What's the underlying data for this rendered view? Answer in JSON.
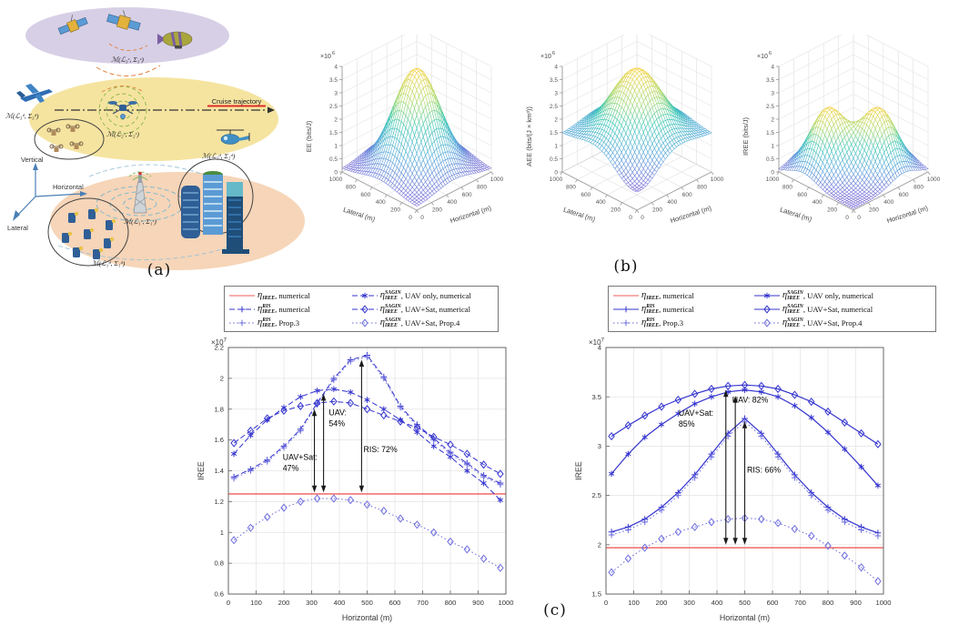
{
  "panel_labels": {
    "a": "(a)",
    "b": "(b)",
    "c": "(c)"
  },
  "colors": {
    "blue": "#3434cf",
    "lightblue": "#6f6fdf",
    "red": "#f05a5a",
    "arrow": "#1a1a1a",
    "grid": "#e3e3e3",
    "axis": "#666666"
  },
  "diagram": {
    "space_cluster_label": "ℳ(ℒ₃ᶜ, Σ₃ᶜ)",
    "uav_cluster_label": "ℳ(ℒ₂ᶜ, Σ₂ᶜ)",
    "bs_cluster_label": "ℳ(ℒ₁ᶜ, Σ₁ᶜ)",
    "drone_swarm_label": "ℳ(ℒ₃ᵈ, Σ₃ᵈ)",
    "buildings_label": "ℳ(ℒ₂ᵈ, Σ₂ᵈ)",
    "iot_label": "ℳ(ℒ₁ᵈ, Σ₁ᵈ)",
    "cruise_label": "Cruise trajectory",
    "axis_vertical": "Vertical",
    "axis_horizontal": "Horizontal",
    "axis_lateral": "Lateral"
  },
  "legends": [
    {
      "mount": "legend-left",
      "items": [
        {
          "sup": "",
          "sub": "IREE",
          "tail": ", numerical",
          "color": "red",
          "line": "solid",
          "marker": "none"
        },
        {
          "sup": "SAGIN",
          "sub": "IREE",
          "tail": ", UAV only, numerical",
          "color": "blue",
          "line": "dash",
          "marker": "star"
        },
        {
          "sup": "RIS",
          "sub": "IREE",
          "tail": ", numerical",
          "color": "blue",
          "line": "dash",
          "marker": "plus"
        },
        {
          "sup": "SAGIN",
          "sub": "IREE",
          "tail": ", UAV+Sat, numerical",
          "color": "blue",
          "line": "dash",
          "marker": "diamond"
        },
        {
          "sup": "RIS",
          "sub": "IREE",
          "tail": ", Prop.3",
          "color": "lightblue",
          "line": "dot",
          "marker": "plus"
        },
        {
          "sup": "SAGIN",
          "sub": "IREE",
          "tail": ", UAV+Sat, Prop.4",
          "color": "lightblue",
          "line": "dot",
          "marker": "diamond"
        }
      ]
    },
    {
      "mount": "legend-right",
      "items": [
        {
          "sup": "",
          "sub": "IREE",
          "tail": ", numerical",
          "color": "red",
          "line": "solid",
          "marker": "none"
        },
        {
          "sup": "SAGIN",
          "sub": "IREE",
          "tail": ", UAV only, numerical",
          "color": "blue",
          "line": "solid",
          "marker": "star"
        },
        {
          "sup": "RIS",
          "sub": "IREE",
          "tail": ", numerical",
          "color": "blue",
          "line": "solid",
          "marker": "plus"
        },
        {
          "sup": "SAGIN",
          "sub": "IREE",
          "tail": ", UAV+Sat, numerical",
          "color": "blue",
          "line": "solid",
          "marker": "diamond"
        },
        {
          "sup": "RIS",
          "sub": "IREE",
          "tail": ", Prop.3",
          "color": "lightblue",
          "line": "dot",
          "marker": "plus"
        },
        {
          "sup": "SAGIN",
          "sub": "IREE",
          "tail": ", UAV+Sat, Prop.4",
          "color": "lightblue",
          "line": "dot",
          "marker": "diamond"
        }
      ]
    }
  ],
  "chart_data": [
    {
      "id": "ee_surface",
      "type": "surface",
      "mount": "surf-ee",
      "zlabel": "EE (bits/J)",
      "exp_base": "×10",
      "exp_pow": "6",
      "xlabel": "Horizontal (m)",
      "ylabel": "Lateral (m)",
      "xlim": [
        0,
        1000
      ],
      "ylim": [
        0,
        1000
      ],
      "zlim": [
        0,
        4
      ],
      "xticks": [
        0,
        200,
        400,
        600,
        800,
        1000
      ],
      "yticks": [
        0,
        200,
        400,
        600,
        800,
        1000
      ],
      "zticks": [
        0,
        0.5,
        1,
        1.5,
        2,
        2.5,
        3,
        3.5,
        4
      ],
      "base": 0.12,
      "peaks": [
        {
          "x": 500,
          "y": 500,
          "a": 3.78,
          "s": 225
        }
      ],
      "dips": []
    },
    {
      "id": "aee_surface",
      "type": "surface",
      "mount": "surf-aee",
      "zlabel": "AEE (bits/(J × km³))",
      "exp_base": "×10",
      "exp_pow": "6",
      "xlabel": "Horizontal (m)",
      "ylabel": "Lateral (m)",
      "xlim": [
        0,
        1000
      ],
      "ylim": [
        0,
        1000
      ],
      "zlim": [
        0,
        4
      ],
      "xticks": [
        0,
        200,
        400,
        600,
        800,
        1000
      ],
      "yticks": [
        0,
        200,
        400,
        600,
        800,
        1000
      ],
      "zticks": [
        0,
        0.5,
        1,
        1.5,
        2,
        2.5,
        3,
        3.5,
        4
      ],
      "base": 1.45,
      "peaks": [
        {
          "x": 500,
          "y": 500,
          "a": 2.45,
          "s": 240
        }
      ],
      "dips": [
        {
          "x": 60,
          "y": 60,
          "a": 0.85,
          "s": 230
        }
      ]
    },
    {
      "id": "iree_surface",
      "type": "surface",
      "mount": "surf-iree",
      "zlabel": "IREE (bits/J)",
      "exp_base": "×10",
      "exp_pow": "6",
      "xlabel": "Horizontal (m)",
      "ylabel": "Lateral (m)",
      "xlim": [
        0,
        1000
      ],
      "ylim": [
        0,
        1000
      ],
      "zlim": [
        0,
        4
      ],
      "xticks": [
        0,
        200,
        400,
        600,
        800,
        1000
      ],
      "yticks": [
        0,
        200,
        400,
        600,
        800,
        1000
      ],
      "zticks": [
        0,
        0.5,
        1,
        1.5,
        2,
        2.5,
        3,
        3.5,
        4
      ],
      "base": 0.05,
      "peaks": [
        {
          "x": 330,
          "y": 670,
          "a": 2.32,
          "s": 175
        },
        {
          "x": 670,
          "y": 330,
          "a": 2.32,
          "s": 175
        }
      ],
      "dips": []
    },
    {
      "id": "iree_vs_horizontal_left",
      "type": "line",
      "mount": "chart-left",
      "xlabel": "Horizontal (m)",
      "ylabel": "IREE",
      "exp_base": "×10",
      "exp_pow": "7",
      "xlim": [
        0,
        1000
      ],
      "ylim": [
        0.6,
        2.2
      ],
      "xtick": 100,
      "ytick": 0.2,
      "ref_value": 1.25,
      "x": [
        20,
        80,
        140,
        200,
        260,
        320,
        380,
        440,
        500,
        560,
        620,
        680,
        740,
        800,
        860,
        920,
        980
      ],
      "series": [
        {
          "name": "eta_IREE_RIS numerical",
          "color": "blue",
          "line": "dash",
          "marker": "plus",
          "values": [
            1.36,
            1.41,
            1.47,
            1.56,
            1.67,
            1.84,
            2.0,
            2.12,
            2.15,
            2.01,
            1.82,
            1.7,
            1.61,
            1.52,
            1.45,
            1.37,
            1.32
          ]
        },
        {
          "name": "eta_IREE_RIS Prop.3",
          "color": "lightblue",
          "line": "dot",
          "marker": "plus",
          "values": [
            1.35,
            1.4,
            1.46,
            1.55,
            1.66,
            1.83,
            1.99,
            2.11,
            2.14,
            2.0,
            1.81,
            1.69,
            1.6,
            1.51,
            1.44,
            1.36,
            1.31
          ]
        },
        {
          "name": "eta_IREE_SAGIN UAV only numerical",
          "color": "blue",
          "line": "dash",
          "marker": "star",
          "values": [
            1.51,
            1.63,
            1.73,
            1.81,
            1.88,
            1.92,
            1.93,
            1.91,
            1.86,
            1.8,
            1.73,
            1.65,
            1.56,
            1.49,
            1.4,
            1.32,
            1.21
          ]
        },
        {
          "name": "eta_IREE_SAGIN UAV+Sat numerical",
          "color": "blue",
          "line": "dash",
          "marker": "diamond",
          "values": [
            1.58,
            1.66,
            1.74,
            1.79,
            1.82,
            1.84,
            1.85,
            1.84,
            1.8,
            1.76,
            1.72,
            1.68,
            1.62,
            1.57,
            1.51,
            1.44,
            1.38
          ]
        },
        {
          "name": "eta_IREE_SAGIN UAV+Sat Prop.4",
          "color": "lightblue",
          "line": "dot",
          "marker": "diamond",
          "values": [
            0.95,
            1.03,
            1.1,
            1.16,
            1.2,
            1.22,
            1.22,
            1.21,
            1.18,
            1.14,
            1.09,
            1.05,
            1.0,
            0.94,
            0.89,
            0.83,
            0.77
          ]
        }
      ],
      "annotations": [
        {
          "lines": [
            "UAV+Sat:",
            "47%"
          ],
          "x": 196,
          "y": 1.47
        },
        {
          "lines": [
            "UAV:",
            "54%"
          ],
          "x": 362,
          "y": 1.76
        },
        {
          "lines": [
            "RIS: 72%"
          ],
          "x": 487,
          "y": 1.52
        }
      ],
      "arrows": [
        {
          "x": 310,
          "y1": 1.26,
          "y2": 1.8
        },
        {
          "x": 343,
          "y1": 1.26,
          "y2": 1.9
        },
        {
          "x": 480,
          "y1": 1.26,
          "y2": 2.12
        }
      ]
    },
    {
      "id": "iree_vs_horizontal_right",
      "type": "line",
      "mount": "chart-right",
      "xlabel": "Horizontal (m)",
      "ylabel": "IREE",
      "exp_base": "×10",
      "exp_pow": "7",
      "xlim": [
        0,
        1000
      ],
      "ylim": [
        1.5,
        4
      ],
      "xtick": 100,
      "ytick": 0.5,
      "ref_value": 1.97,
      "x": [
        20,
        80,
        140,
        200,
        260,
        320,
        380,
        440,
        500,
        560,
        620,
        680,
        740,
        800,
        860,
        920,
        980
      ],
      "series": [
        {
          "name": "eta_IREE_RIS numerical",
          "color": "blue",
          "line": "solid",
          "marker": "plus",
          "values": [
            2.13,
            2.18,
            2.26,
            2.38,
            2.53,
            2.71,
            2.92,
            3.13,
            3.28,
            3.13,
            2.92,
            2.71,
            2.53,
            2.38,
            2.26,
            2.18,
            2.12
          ]
        },
        {
          "name": "eta_IREE_RIS Prop.3",
          "color": "lightblue",
          "line": "dot",
          "marker": "plus",
          "values": [
            2.1,
            2.15,
            2.23,
            2.35,
            2.5,
            2.68,
            2.89,
            3.1,
            3.25,
            3.1,
            2.89,
            2.68,
            2.5,
            2.35,
            2.23,
            2.15,
            2.09
          ]
        },
        {
          "name": "eta_IREE_SAGIN UAV only numerical",
          "color": "blue",
          "line": "solid",
          "marker": "star",
          "values": [
            2.72,
            2.92,
            3.09,
            3.22,
            3.33,
            3.43,
            3.5,
            3.55,
            3.57,
            3.55,
            3.5,
            3.41,
            3.29,
            3.14,
            2.97,
            2.79,
            2.6
          ]
        },
        {
          "name": "eta_IREE_SAGIN UAV+Sat numerical",
          "color": "blue",
          "line": "solid",
          "marker": "diamond",
          "values": [
            3.1,
            3.21,
            3.31,
            3.4,
            3.47,
            3.53,
            3.58,
            3.61,
            3.62,
            3.61,
            3.58,
            3.52,
            3.45,
            3.35,
            3.24,
            3.13,
            3.02
          ]
        },
        {
          "name": "eta_IREE_SAGIN UAV+Sat Prop.4",
          "color": "lightblue",
          "line": "dot",
          "marker": "diamond",
          "values": [
            1.72,
            1.86,
            1.97,
            2.06,
            2.13,
            2.18,
            2.23,
            2.26,
            2.27,
            2.26,
            2.22,
            2.16,
            2.09,
            1.99,
            1.89,
            1.77,
            1.63
          ]
        }
      ],
      "annotations": [
        {
          "lines": [
            "UAV+Sat:",
            "85%"
          ],
          "x": 262,
          "y": 3.31
        },
        {
          "lines": [
            "UAV: 82%"
          ],
          "x": 455,
          "y": 3.44
        },
        {
          "lines": [
            "RIS: 66%"
          ],
          "x": 508,
          "y": 2.73
        }
      ],
      "arrows": [
        {
          "x": 432,
          "y1": 2.0,
          "y2": 3.57
        },
        {
          "x": 466,
          "y1": 2.0,
          "y2": 3.51
        },
        {
          "x": 500,
          "y1": 2.0,
          "y2": 3.25
        }
      ]
    }
  ]
}
